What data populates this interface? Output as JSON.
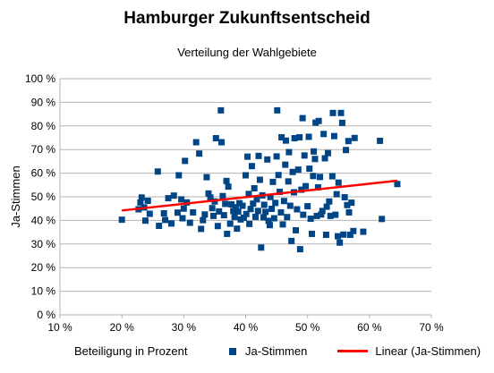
{
  "chart_data": {
    "type": "scatter",
    "title": "Hamburger Zukunftsentscheid",
    "subtitle": "Verteilung der Wahlgebiete",
    "xlabel": "Beteiligung in Prozent",
    "ylabel": "Ja-Stimmen",
    "xlim": [
      0.1,
      0.7
    ],
    "ylim": [
      0,
      1.0
    ],
    "x_ticks": [
      "10 %",
      "20 %",
      "30 %",
      "40 %",
      "50 %",
      "60 %",
      "70 %"
    ],
    "y_ticks": [
      "0 %",
      "10 %",
      "20 %",
      "30 %",
      "40 %",
      "50 %",
      "60 %",
      "70 %",
      "80 %",
      "90 %",
      "100 %"
    ],
    "grid": "horizontal",
    "legend_position": "bottom",
    "series": [
      {
        "name": "Ja-Stimmen",
        "color": "#004586",
        "marker": "square",
        "points": [
          [
            0.2,
            0.403
          ],
          [
            0.227,
            0.447
          ],
          [
            0.23,
            0.476
          ],
          [
            0.232,
            0.497
          ],
          [
            0.236,
            0.455
          ],
          [
            0.238,
            0.399
          ],
          [
            0.242,
            0.483
          ],
          [
            0.245,
            0.428
          ],
          [
            0.258,
            0.607
          ],
          [
            0.26,
            0.377
          ],
          [
            0.268,
            0.43
          ],
          [
            0.27,
            0.402
          ],
          [
            0.275,
            0.494
          ],
          [
            0.28,
            0.387
          ],
          [
            0.284,
            0.505
          ],
          [
            0.29,
            0.433
          ],
          [
            0.292,
            0.591
          ],
          [
            0.296,
            0.489
          ],
          [
            0.298,
            0.409
          ],
          [
            0.3,
            0.45
          ],
          [
            0.302,
            0.652
          ],
          [
            0.305,
            0.476
          ],
          [
            0.31,
            0.39
          ],
          [
            0.315,
            0.434
          ],
          [
            0.32,
            0.731
          ],
          [
            0.325,
            0.683
          ],
          [
            0.328,
            0.364
          ],
          [
            0.331,
            0.401
          ],
          [
            0.334,
            0.425
          ],
          [
            0.337,
            0.583
          ],
          [
            0.34,
            0.514
          ],
          [
            0.343,
            0.497
          ],
          [
            0.346,
            0.452
          ],
          [
            0.348,
            0.419
          ],
          [
            0.35,
            0.48
          ],
          [
            0.352,
            0.748
          ],
          [
            0.355,
            0.376
          ],
          [
            0.357,
            0.438
          ],
          [
            0.36,
            0.866
          ],
          [
            0.361,
            0.731
          ],
          [
            0.363,
            0.503
          ],
          [
            0.365,
            0.422
          ],
          [
            0.367,
            0.47
          ],
          [
            0.369,
            0.567
          ],
          [
            0.37,
            0.343
          ],
          [
            0.372,
            0.543
          ],
          [
            0.375,
            0.386
          ],
          [
            0.377,
            0.468
          ],
          [
            0.38,
            0.44
          ],
          [
            0.382,
            0.415
          ],
          [
            0.384,
            0.456
          ],
          [
            0.386,
            0.365
          ],
          [
            0.388,
            0.437
          ],
          [
            0.39,
            0.473
          ],
          [
            0.392,
            0.404
          ],
          [
            0.395,
            0.462
          ],
          [
            0.397,
            0.411
          ],
          [
            0.4,
            0.591
          ],
          [
            0.401,
            0.427
          ],
          [
            0.403,
            0.67
          ],
          [
            0.405,
            0.512
          ],
          [
            0.406,
            0.385
          ],
          [
            0.408,
            0.448
          ],
          [
            0.41,
            0.63
          ],
          [
            0.412,
            0.471
          ],
          [
            0.414,
            0.536
          ],
          [
            0.416,
            0.415
          ],
          [
            0.418,
            0.489
          ],
          [
            0.42,
            0.44
          ],
          [
            0.421,
            0.673
          ],
          [
            0.423,
            0.572
          ],
          [
            0.425,
            0.285
          ],
          [
            0.427,
            0.506
          ],
          [
            0.429,
            0.413
          ],
          [
            0.43,
            0.466
          ],
          [
            0.432,
            0.436
          ],
          [
            0.435,
            0.658
          ],
          [
            0.437,
            0.398
          ],
          [
            0.439,
            0.38
          ],
          [
            0.44,
            0.499
          ],
          [
            0.442,
            0.449
          ],
          [
            0.444,
            0.563
          ],
          [
            0.446,
            0.409
          ],
          [
            0.448,
            0.474
          ],
          [
            0.45,
            0.671
          ],
          [
            0.451,
            0.866
          ],
          [
            0.453,
            0.592
          ],
          [
            0.455,
            0.521
          ],
          [
            0.457,
            0.434
          ],
          [
            0.458,
            0.752
          ],
          [
            0.46,
            0.383
          ],
          [
            0.462,
            0.482
          ],
          [
            0.464,
            0.636
          ],
          [
            0.465,
            0.738
          ],
          [
            0.467,
            0.414
          ],
          [
            0.469,
            0.565
          ],
          [
            0.47,
            0.689
          ],
          [
            0.472,
            0.462
          ],
          [
            0.474,
            0.313
          ],
          [
            0.476,
            0.605
          ],
          [
            0.478,
            0.519
          ],
          [
            0.479,
            0.748
          ],
          [
            0.481,
            0.358
          ],
          [
            0.483,
            0.447
          ],
          [
            0.485,
            0.615
          ],
          [
            0.487,
            0.752
          ],
          [
            0.488,
            0.278
          ],
          [
            0.49,
            0.53
          ],
          [
            0.492,
            0.833
          ],
          [
            0.493,
            0.424
          ],
          [
            0.495,
            0.675
          ],
          [
            0.497,
            0.545
          ],
          [
            0.5,
            0.46
          ],
          [
            0.502,
            0.754
          ],
          [
            0.503,
            0.619
          ],
          [
            0.505,
            0.407
          ],
          [
            0.507,
            0.343
          ],
          [
            0.509,
            0.588
          ],
          [
            0.51,
            0.692
          ],
          [
            0.512,
            0.66
          ],
          [
            0.513,
            0.814
          ],
          [
            0.515,
            0.419
          ],
          [
            0.517,
            0.54
          ],
          [
            0.518,
            0.821
          ],
          [
            0.52,
            0.584
          ],
          [
            0.522,
            0.425
          ],
          [
            0.524,
            0.44
          ],
          [
            0.526,
            0.766
          ],
          [
            0.528,
            0.663
          ],
          [
            0.53,
            0.339
          ],
          [
            0.531,
            0.458
          ],
          [
            0.533,
            0.685
          ],
          [
            0.535,
            0.48
          ],
          [
            0.537,
            0.419
          ],
          [
            0.54,
            0.587
          ],
          [
            0.541,
            0.855
          ],
          [
            0.543,
            0.757
          ],
          [
            0.545,
            0.424
          ],
          [
            0.547,
            0.511
          ],
          [
            0.549,
            0.333
          ],
          [
            0.55,
            0.56
          ],
          [
            0.552,
            0.306
          ],
          [
            0.554,
            0.855
          ],
          [
            0.556,
            0.813
          ],
          [
            0.558,
            0.34
          ],
          [
            0.56,
            0.498
          ],
          [
            0.562,
            0.698
          ],
          [
            0.564,
            0.465
          ],
          [
            0.566,
            0.736
          ],
          [
            0.567,
            0.434
          ],
          [
            0.569,
            0.339
          ],
          [
            0.571,
            0.475
          ],
          [
            0.574,
            0.355
          ],
          [
            0.576,
            0.749
          ],
          [
            0.59,
            0.352
          ],
          [
            0.617,
            0.737
          ],
          [
            0.62,
            0.406
          ],
          [
            0.645,
            0.554
          ]
        ]
      },
      {
        "name": "Linear (Ja-Stimmen)",
        "color": "#ff0000",
        "type": "trendline",
        "x": [
          0.2,
          0.645
        ],
        "y": [
          0.442,
          0.568
        ]
      }
    ]
  }
}
